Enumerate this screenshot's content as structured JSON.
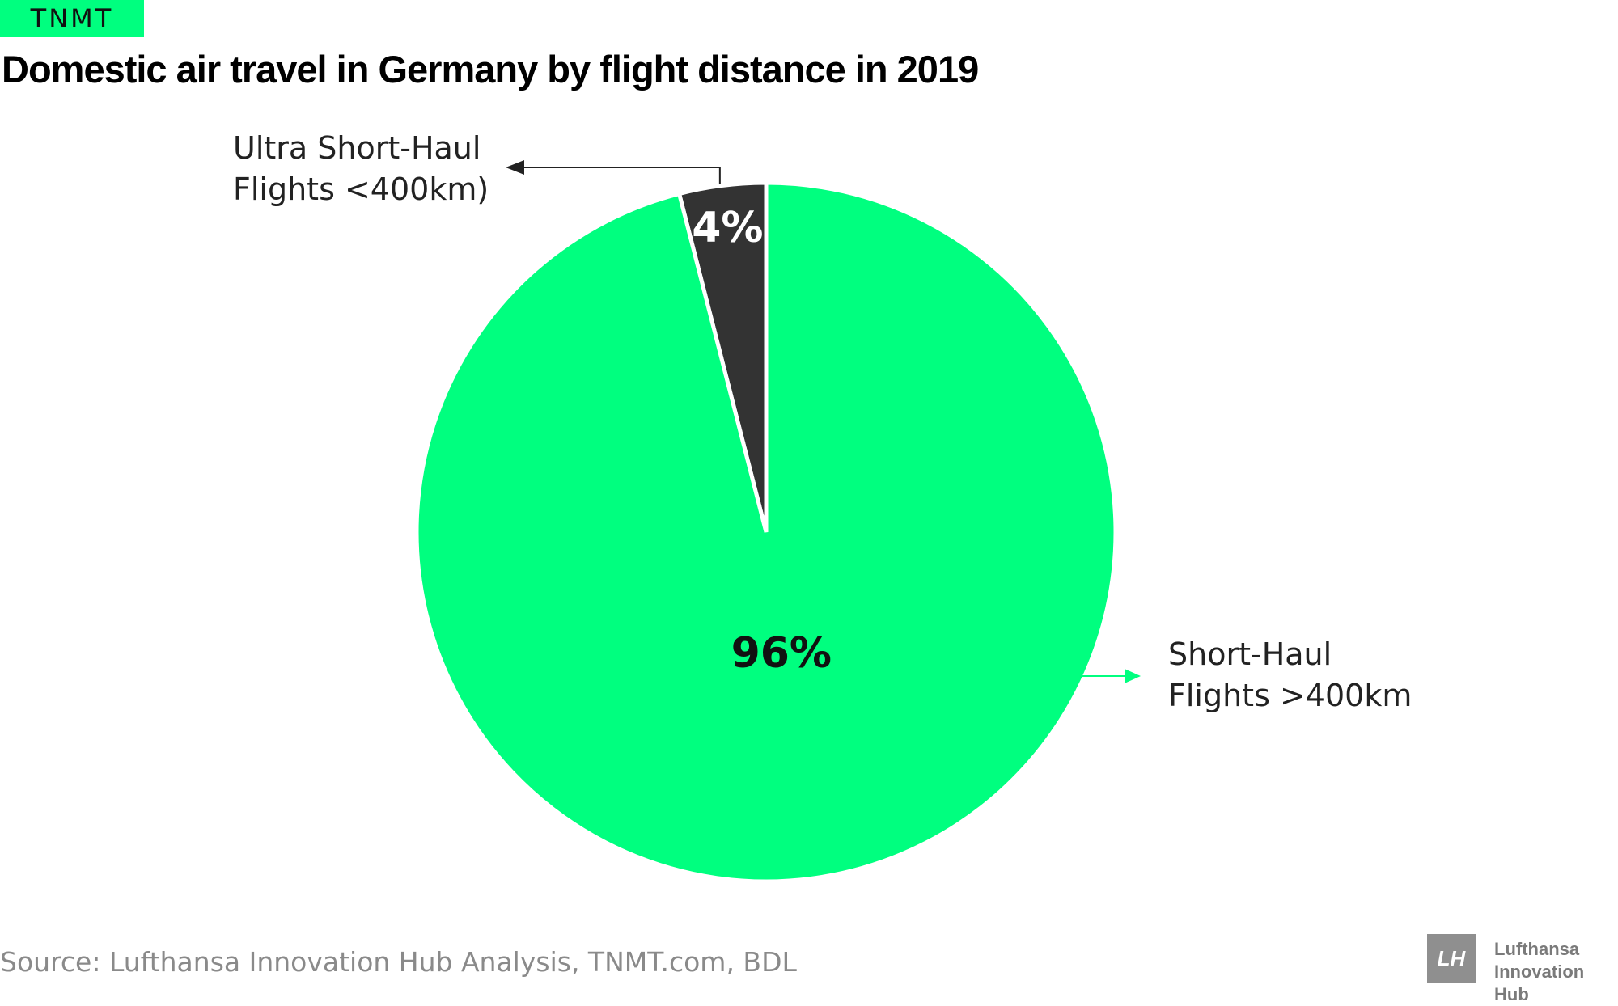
{
  "brand": {
    "logo_text": "TNMT"
  },
  "chart_data": {
    "type": "pie",
    "title": "Domestic air travel in Germany by flight distance in 2019",
    "slices": [
      {
        "name_lines": [
          "Ultra Short-Haul",
          "Flights <400km)"
        ],
        "value": 4,
        "label": "4%",
        "color": "#333333",
        "label_color": "#ffffff"
      },
      {
        "name_lines": [
          "Short-Haul",
          "Flights >400km"
        ],
        "value": 96,
        "label": "96%",
        "color": "#00ff7f",
        "label_color": "#111111"
      }
    ]
  },
  "footer": {
    "source": "Source: Lufthansa Innovation Hub Analysis, TNMT.com, BDL",
    "partner_mark": "LH",
    "partner_lines": [
      "Lufthansa",
      "Innovation Hub"
    ]
  }
}
